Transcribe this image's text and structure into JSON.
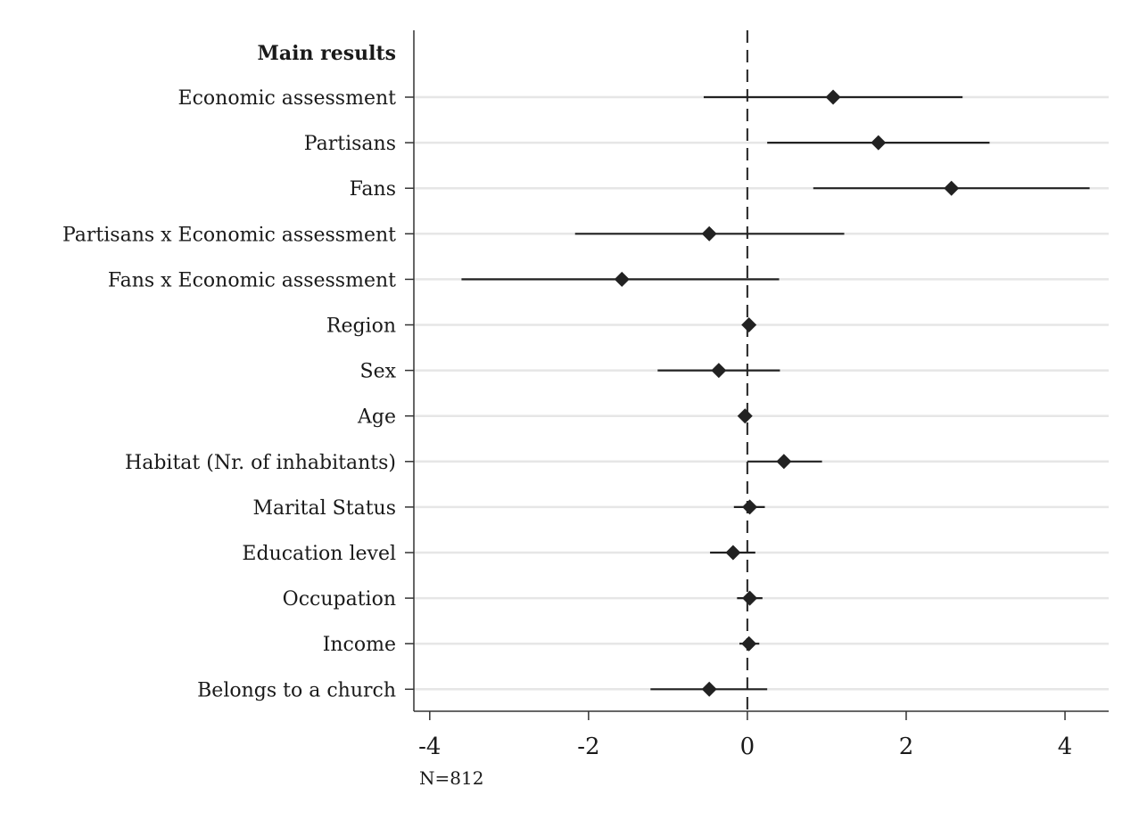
{
  "chart_data": {
    "type": "coefficient-plot",
    "orientation": "horizontal",
    "header": "Main results",
    "note": "N=812",
    "xlim": [
      -4.2,
      4.55
    ],
    "xticks": [
      -4,
      -2,
      0,
      2,
      4
    ],
    "xtick_labels": [
      "-4",
      "-2",
      "0",
      "2",
      "4"
    ],
    "reference_line": 0,
    "grid": true,
    "marker": "diamond",
    "colors": {
      "marker": "#222222",
      "ci": "#222222",
      "grid": "#e6e6e6",
      "axis": "#333333"
    },
    "series": [
      {
        "label": "Economic assessment",
        "estimate": 1.08,
        "ci": [
          -0.55,
          2.71
        ]
      },
      {
        "label": "Partisans",
        "estimate": 1.65,
        "ci": [
          0.25,
          3.05
        ]
      },
      {
        "label": "Fans",
        "estimate": 2.57,
        "ci": [
          0.83,
          4.31
        ]
      },
      {
        "label": "Partisans x Economic assessment",
        "estimate": -0.48,
        "ci": [
          -2.17,
          1.22
        ]
      },
      {
        "label": "Fans x Economic assessment",
        "estimate": -1.58,
        "ci": [
          -3.6,
          0.4
        ]
      },
      {
        "label": "Region",
        "estimate": 0.02,
        "ci": [
          -0.02,
          0.06
        ]
      },
      {
        "label": "Sex",
        "estimate": -0.36,
        "ci": [
          -1.13,
          0.41
        ]
      },
      {
        "label": "Age",
        "estimate": -0.03,
        "ci": [
          -0.05,
          0.01
        ]
      },
      {
        "label": "Habitat (Nr. of inhabitants)",
        "estimate": 0.46,
        "ci": [
          0.0,
          0.94
        ]
      },
      {
        "label": "Marital Status",
        "estimate": 0.03,
        "ci": [
          -0.17,
          0.22
        ]
      },
      {
        "label": "Education level",
        "estimate": -0.18,
        "ci": [
          -0.47,
          0.1
        ]
      },
      {
        "label": "Occupation",
        "estimate": 0.03,
        "ci": [
          -0.13,
          0.19
        ]
      },
      {
        "label": "Income",
        "estimate": 0.02,
        "ci": [
          -0.1,
          0.15
        ]
      },
      {
        "label": "Belongs to a church",
        "estimate": -0.48,
        "ci": [
          -1.22,
          0.25
        ]
      }
    ]
  }
}
